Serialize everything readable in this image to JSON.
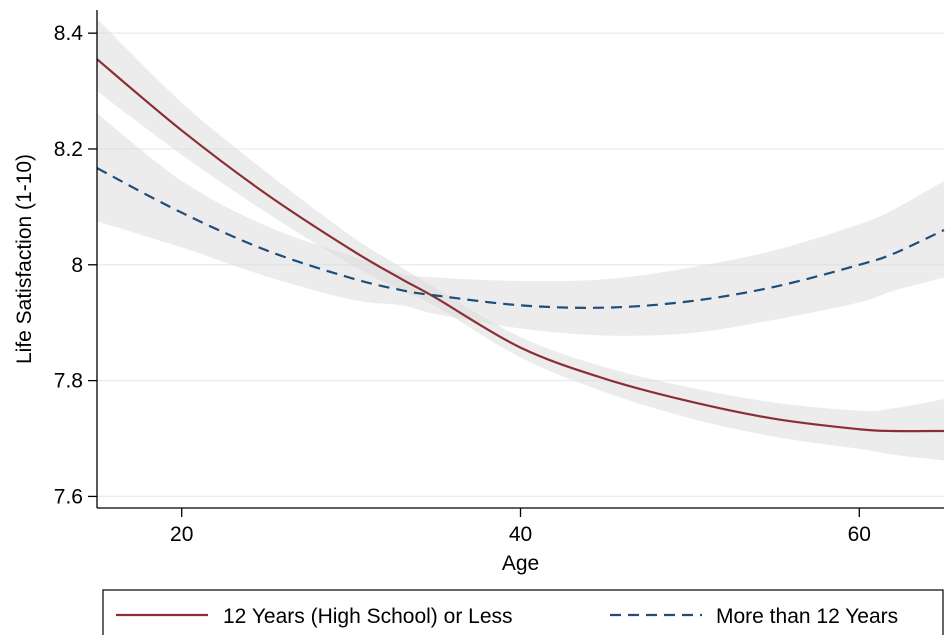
{
  "chart_data": {
    "type": "line",
    "title": "",
    "xlabel": "Age",
    "ylabel": "Life Satisfaction (1-10)",
    "xlim": [
      15,
      65
    ],
    "ylim": [
      7.58,
      8.44
    ],
    "x_ticks": [
      20,
      40,
      60
    ],
    "x_tick_labels": [
      "20",
      "40",
      "60"
    ],
    "y_ticks": [
      7.6,
      7.8,
      8.0,
      8.2,
      8.4
    ],
    "y_tick_labels": [
      "7.6",
      "7.8",
      "8",
      "8.2",
      "8.4"
    ],
    "grid": true,
    "legend_position": "bottom",
    "x": [
      15,
      20,
      25,
      30,
      33,
      35,
      40,
      45,
      50,
      55,
      60,
      62,
      65
    ],
    "series": [
      {
        "name": "12 Years (High School) or Less",
        "color": "#8b2e35",
        "line_style": "solid",
        "values": [
          8.355,
          8.232,
          8.122,
          8.026,
          7.975,
          7.943,
          7.857,
          7.803,
          7.764,
          7.734,
          7.716,
          7.713,
          7.713
        ],
        "ci_lower": [
          8.3,
          8.19,
          8.09,
          8.0,
          7.955,
          7.928,
          7.84,
          7.78,
          7.735,
          7.703,
          7.682,
          7.672,
          7.662
        ],
        "ci_upper": [
          8.425,
          8.28,
          8.16,
          8.05,
          7.995,
          7.96,
          7.875,
          7.823,
          7.788,
          7.762,
          7.748,
          7.752,
          7.768
        ]
      },
      {
        "name": "More than 12 Years",
        "color": "#1f4e79",
        "line_style": "dashed",
        "values": [
          8.167,
          8.09,
          8.025,
          7.977,
          7.956,
          7.947,
          7.93,
          7.926,
          7.937,
          7.962,
          8.0,
          8.019,
          8.06
        ],
        "ci_lower": [
          8.075,
          8.03,
          7.98,
          7.94,
          7.93,
          7.915,
          7.89,
          7.878,
          7.882,
          7.905,
          7.935,
          7.955,
          7.978
        ],
        "ci_upper": [
          8.262,
          8.145,
          8.067,
          8.015,
          7.985,
          7.978,
          7.972,
          7.975,
          7.995,
          8.025,
          8.07,
          8.095,
          8.145
        ]
      }
    ],
    "ci_color": "#d9d9d9"
  }
}
